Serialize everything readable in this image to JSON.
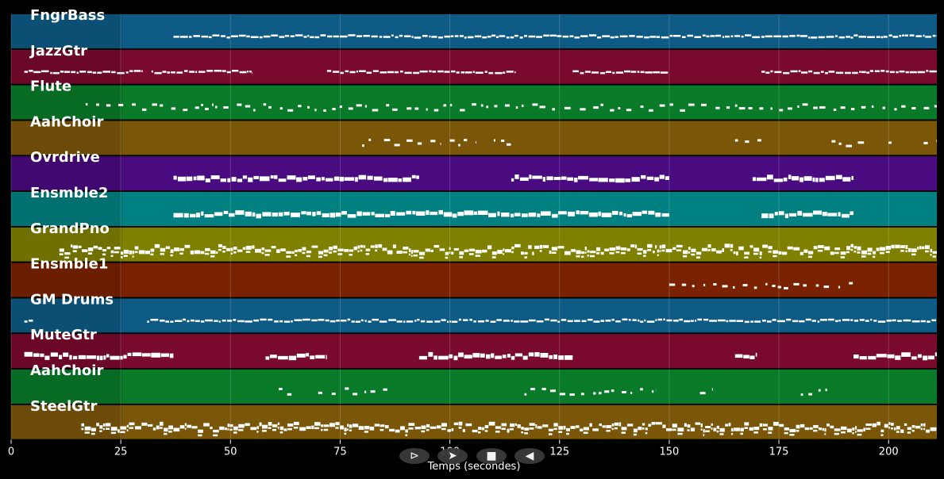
{
  "controls": {
    "play_glyph": "⊳",
    "forward_glyph": "➤",
    "stop_glyph": "■",
    "back_glyph": "◀"
  },
  "chart_data": {
    "type": "piano-roll",
    "xlabel": "Temps (secondes)",
    "xlim": [
      0,
      211
    ],
    "xticks": [
      0,
      25,
      50,
      75,
      100,
      125,
      150,
      175,
      200
    ],
    "grid": true,
    "tracks": [
      {
        "name": "FngrBass",
        "color": "#0d5a85",
        "segments": [
          [
            37,
            211
          ]
        ],
        "density": "dense-line"
      },
      {
        "name": "JazzGtr",
        "color": "#7a0a2d",
        "segments": [
          [
            3,
            30
          ],
          [
            32,
            55
          ],
          [
            72,
            115
          ],
          [
            128,
            150
          ],
          [
            171,
            211
          ]
        ],
        "density": "dense-line"
      },
      {
        "name": "Flute",
        "color": "#087a28",
        "segments": [
          [
            17,
            211
          ]
        ],
        "density": "sparse"
      },
      {
        "name": "AahChoir",
        "color": "#7a5608",
        "segments": [
          [
            80,
            82
          ],
          [
            85,
            98
          ],
          [
            100,
            106
          ],
          [
            110,
            114
          ],
          [
            165,
            171
          ],
          [
            187,
            192
          ],
          [
            193,
            196
          ],
          [
            200,
            202
          ],
          [
            208,
            211
          ]
        ],
        "density": "sparse"
      },
      {
        "name": "Ovrdrive",
        "color": "#4a0a80",
        "segments": [
          [
            37,
            93
          ],
          [
            114,
            150
          ],
          [
            169,
            192
          ]
        ],
        "density": "thick"
      },
      {
        "name": "Ensmble2",
        "color": "#008080",
        "segments": [
          [
            37,
            150
          ],
          [
            171,
            192
          ]
        ],
        "density": "thick"
      },
      {
        "name": "GrandPno",
        "color": "#7f8000",
        "segments": [
          [
            11,
            211
          ]
        ],
        "density": "very-dense"
      },
      {
        "name": "Ensmble1",
        "color": "#7a2200",
        "segments": [
          [
            150,
            192
          ]
        ],
        "density": "sparse"
      },
      {
        "name": "GM Drums",
        "color": "#0d5a85",
        "segments": [
          [
            3,
            5
          ],
          [
            31,
            211
          ]
        ],
        "density": "dense-line"
      },
      {
        "name": "MuteGtr",
        "color": "#7a0a2d",
        "segments": [
          [
            3,
            37
          ],
          [
            58,
            72
          ],
          [
            93,
            128
          ],
          [
            165,
            170
          ],
          [
            192,
            211
          ]
        ],
        "density": "thick"
      },
      {
        "name": "AahChoir",
        "color": "#087a28",
        "segments": [
          [
            61,
            64
          ],
          [
            70,
            87
          ],
          [
            117,
            147
          ],
          [
            157,
            160
          ],
          [
            180,
            186
          ]
        ],
        "density": "sparse"
      },
      {
        "name": "SteelGtr",
        "color": "#7a5608",
        "segments": [
          [
            16,
            211
          ]
        ],
        "density": "very-dense"
      }
    ]
  }
}
